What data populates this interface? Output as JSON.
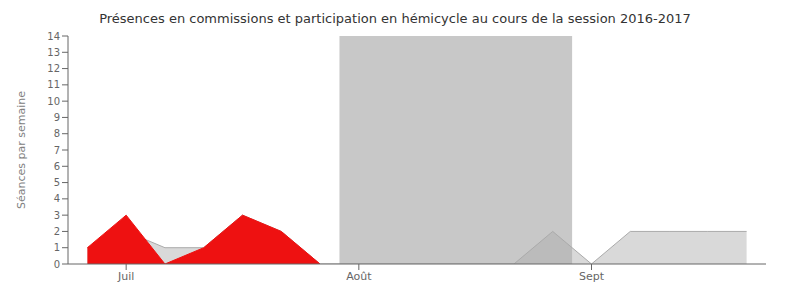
{
  "chart_data": {
    "type": "area",
    "title": "Présences en commissions et participation en hémicycle au cours de la session 2016-2017",
    "ylabel": "Séances par semaine",
    "x": [
      0,
      1,
      2,
      3,
      4,
      5,
      6,
      7,
      8,
      9,
      10,
      11,
      12,
      13,
      14,
      15,
      16,
      17
    ],
    "xlim": [
      -0.5,
      17.5
    ],
    "xticks": [
      {
        "value": 1,
        "label": "Juil"
      },
      {
        "value": 7,
        "label": "Août"
      },
      {
        "value": 13,
        "label": "Sept"
      }
    ],
    "ylim": [
      0,
      14
    ],
    "yticks": [
      0,
      1,
      2,
      3,
      4,
      5,
      6,
      7,
      8,
      9,
      10,
      11,
      12,
      13,
      14
    ],
    "grid": false,
    "band": {
      "x": [
        6.5,
        12.5
      ],
      "color": "#aaaaaa"
    },
    "series": [
      {
        "color": "#aaaaaa",
        "values": [
          1,
          2,
          1,
          1,
          3,
          2,
          0,
          0,
          0,
          0,
          0,
          0,
          2,
          0,
          2,
          2,
          2,
          2
        ]
      },
      {
        "color": "#ee1111",
        "values": [
          1,
          3,
          0,
          1,
          3,
          2,
          0,
          null,
          null,
          null,
          null,
          null,
          null,
          null,
          null,
          null,
          null,
          null
        ]
      }
    ]
  }
}
